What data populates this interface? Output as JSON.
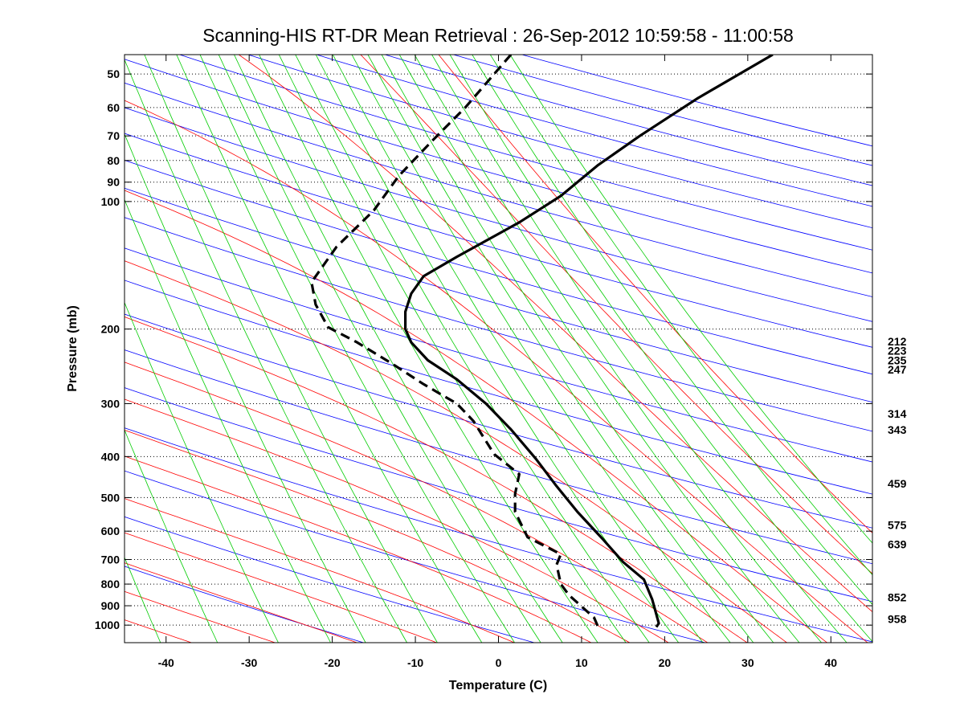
{
  "chart_data": {
    "type": "line",
    "title": "Scanning-HIS RT-DR Mean Retrieval : 26-Sep-2012 10:59:58 - 11:00:58",
    "xlabel": "Temperature (C)",
    "ylabel": "Pressure (mb)",
    "xlim": [
      -45,
      45
    ],
    "ylim": [
      1100,
      45
    ],
    "y_scale": "log",
    "grid": "horizontal dotted at pressure ticks",
    "x_ticks": [
      -40,
      -30,
      -20,
      -10,
      0,
      10,
      20,
      30,
      40
    ],
    "x_tick_labels": [
      "-40",
      "-30",
      "-20",
      "-10",
      "0",
      "10",
      "20",
      "30",
      "40"
    ],
    "y_ticks": [
      50,
      60,
      70,
      80,
      90,
      100,
      200,
      300,
      400,
      500,
      600,
      700,
      800,
      900,
      1000
    ],
    "y_tick_labels": [
      "50",
      "60",
      "70",
      "80",
      "90",
      "100",
      "200",
      "300",
      "400",
      "500",
      "600",
      "700",
      "800",
      "900",
      "1000"
    ],
    "right_labels": [
      {
        "text": "212",
        "p": 212
      },
      {
        "text": "223",
        "p": 223
      },
      {
        "text": "235",
        "p": 235
      },
      {
        "text": "247",
        "p": 247
      },
      {
        "text": "314",
        "p": 314
      },
      {
        "text": "343",
        "p": 343
      },
      {
        "text": "459",
        "p": 459
      },
      {
        "text": "575",
        "p": 575
      },
      {
        "text": "639",
        "p": 639
      },
      {
        "text": "852",
        "p": 852
      },
      {
        "text": "958",
        "p": 958
      }
    ],
    "colors": {
      "dry_adiabat": "#0000ff",
      "moist_adiabat": "#ff0000",
      "mixing_ratio": "#00cc00",
      "temperature": "#000000",
      "dewpoint": "#000000"
    },
    "background_lines": {
      "dry_adiabat_theta_K": [
        250,
        270,
        290,
        310,
        330,
        350,
        370,
        390,
        410,
        430,
        450,
        470,
        490,
        510,
        530,
        550,
        570,
        590,
        610,
        630,
        650,
        670
      ],
      "moist_adiabat_theta_K": [
        230,
        240,
        250,
        260,
        270,
        280,
        285,
        290,
        295,
        300,
        305,
        310,
        315,
        320,
        325,
        330
      ],
      "mixing_ratio_gkg": [
        0.005,
        0.01,
        0.02,
        0.05,
        0.1,
        0.2,
        0.4,
        0.7,
        1,
        1.5,
        2,
        3,
        4,
        5,
        6,
        8,
        10,
        12,
        15,
        18,
        22,
        26,
        30,
        36,
        42,
        50,
        60,
        75,
        90,
        110
      ]
    },
    "series": [
      {
        "style": "solid",
        "points": [
          [
            33,
            45
          ],
          [
            24,
            57
          ],
          [
            17,
            70
          ],
          [
            12,
            82
          ],
          [
            7.5,
            97
          ],
          [
            2.5,
            112
          ],
          [
            -5,
            135
          ],
          [
            -9,
            150
          ],
          [
            -10.5,
            165
          ],
          [
            -11.2,
            182
          ],
          [
            -11.2,
            200
          ],
          [
            -10.5,
            215
          ],
          [
            -8.5,
            237
          ],
          [
            -5,
            263
          ],
          [
            -1.5,
            300
          ],
          [
            1.5,
            345
          ],
          [
            4.5,
            405
          ],
          [
            7,
            470
          ],
          [
            9.5,
            540
          ],
          [
            12.5,
            625
          ],
          [
            15,
            710
          ],
          [
            17.5,
            780
          ],
          [
            18.5,
            870
          ],
          [
            19.3,
            990
          ],
          [
            19,
            1010
          ]
        ]
      },
      {
        "style": "dashed",
        "points": [
          [
            1.5,
            45
          ],
          [
            -4,
            60
          ],
          [
            -8,
            72
          ],
          [
            -12,
            87
          ],
          [
            -15,
            105
          ],
          [
            -19.5,
            128
          ],
          [
            -22.5,
            155
          ],
          [
            -22,
            175
          ],
          [
            -20.5,
            198
          ],
          [
            -17,
            215
          ],
          [
            -13,
            240
          ],
          [
            -9,
            270
          ],
          [
            -5,
            300
          ],
          [
            -3,
            330
          ],
          [
            -2,
            355
          ],
          [
            -0.5,
            395
          ],
          [
            2.5,
            440
          ],
          [
            2,
            490
          ],
          [
            2,
            540
          ],
          [
            3.5,
            620
          ],
          [
            7.5,
            680
          ],
          [
            7,
            720
          ],
          [
            7.5,
            800
          ],
          [
            8.5,
            850
          ],
          [
            11.5,
            960
          ],
          [
            12,
            1010
          ]
        ]
      }
    ]
  }
}
